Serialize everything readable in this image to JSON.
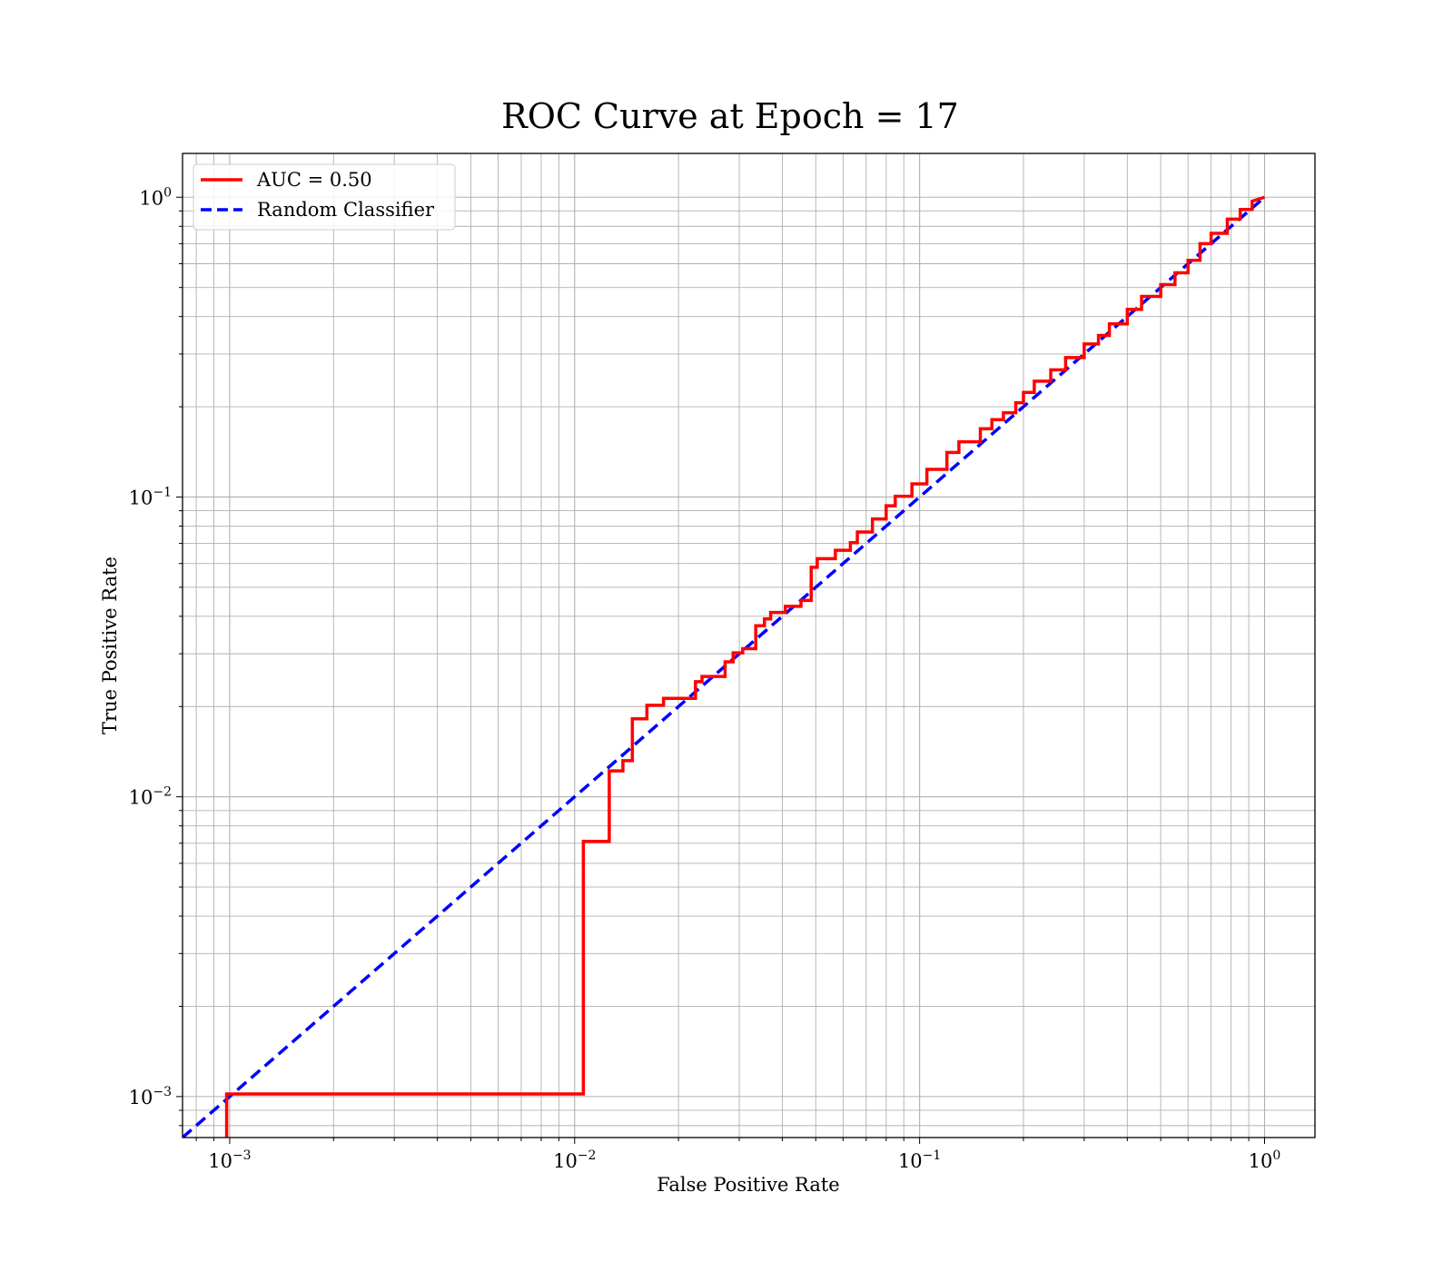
{
  "chart_data": {
    "type": "line",
    "title": "ROC Curve at Epoch = 17",
    "xlabel": "False Positive Rate",
    "ylabel": "True Positive Rate",
    "xscale": "log",
    "yscale": "log",
    "xlim": [
      0.00073,
      1.4
    ],
    "ylim": [
      0.00073,
      1.4
    ],
    "grid": true,
    "legend_position": "top-left",
    "x_ticks": [
      {
        "base": "10",
        "exp": "−3",
        "value": 0.001
      },
      {
        "base": "10",
        "exp": "−2",
        "value": 0.01
      },
      {
        "base": "10",
        "exp": "−1",
        "value": 0.1
      },
      {
        "base": "10",
        "exp": "0",
        "value": 1
      }
    ],
    "y_ticks": [
      {
        "base": "10",
        "exp": "−3",
        "value": 0.001
      },
      {
        "base": "10",
        "exp": "−2",
        "value": 0.01
      },
      {
        "base": "10",
        "exp": "−1",
        "value": 0.1
      },
      {
        "base": "10",
        "exp": "0",
        "value": 1
      }
    ],
    "series": [
      {
        "name": "AUC = 0.50",
        "color": "#ff0000",
        "style": "solid",
        "step": true,
        "x": [
          0.00098,
          0.00098,
          0.0106,
          0.0106,
          0.0126,
          0.0126,
          0.0138,
          0.0138,
          0.0147,
          0.0147,
          0.0162,
          0.0162,
          0.0181,
          0.0181,
          0.0224,
          0.0224,
          0.0234,
          0.0234,
          0.0273,
          0.0273,
          0.0288,
          0.0288,
          0.0307,
          0.0307,
          0.0335,
          0.0335,
          0.0355,
          0.0355,
          0.037,
          0.037,
          0.0408,
          0.0408,
          0.0453,
          0.0453,
          0.0485,
          0.0485,
          0.0505,
          0.0505,
          0.057,
          0.057,
          0.063,
          0.063,
          0.066,
          0.066,
          0.073,
          0.073,
          0.08,
          0.08,
          0.085,
          0.085,
          0.095,
          0.095,
          0.105,
          0.105,
          0.12,
          0.12,
          0.13,
          0.13,
          0.15,
          0.15,
          0.162,
          0.162,
          0.175,
          0.175,
          0.19,
          0.19,
          0.2,
          0.2,
          0.215,
          0.215,
          0.24,
          0.24,
          0.265,
          0.265,
          0.3,
          0.3,
          0.33,
          0.33,
          0.355,
          0.355,
          0.4,
          0.4,
          0.44,
          0.44,
          0.5,
          0.5,
          0.55,
          0.55,
          0.6,
          0.6,
          0.65,
          0.65,
          0.7,
          0.7,
          0.78,
          0.78,
          0.85,
          0.85,
          0.92,
          0.92,
          1.0
        ],
        "y": [
          0.00073,
          0.00102,
          0.00102,
          0.0071,
          0.0071,
          0.0122,
          0.0122,
          0.0132,
          0.0132,
          0.0182,
          0.0182,
          0.0202,
          0.0202,
          0.0213,
          0.0213,
          0.0242,
          0.0242,
          0.0252,
          0.0252,
          0.0282,
          0.0282,
          0.0302,
          0.0302,
          0.0312,
          0.0312,
          0.0372,
          0.0372,
          0.0392,
          0.0392,
          0.0412,
          0.0412,
          0.0432,
          0.0432,
          0.0452,
          0.0452,
          0.0583,
          0.0583,
          0.0623,
          0.0623,
          0.0664,
          0.0664,
          0.0704,
          0.0704,
          0.0764,
          0.0764,
          0.0845,
          0.0845,
          0.0935,
          0.0935,
          0.1006,
          0.1006,
          0.1106,
          0.1106,
          0.1237,
          0.1237,
          0.1408,
          0.1408,
          0.1529,
          0.1529,
          0.169,
          0.169,
          0.1811,
          0.1811,
          0.1911,
          0.1911,
          0.2062,
          0.2062,
          0.2233,
          0.2233,
          0.2434,
          0.2434,
          0.2656,
          0.2656,
          0.2918,
          0.2918,
          0.3239,
          0.3239,
          0.346,
          0.346,
          0.3781,
          0.3781,
          0.4225,
          0.4225,
          0.4668,
          0.4668,
          0.5111,
          0.5111,
          0.5594,
          0.5594,
          0.6157,
          0.6157,
          0.7,
          0.7,
          0.758,
          0.758,
          0.845,
          0.845,
          0.91,
          0.91,
          0.97,
          1.0
        ]
      },
      {
        "name": "Random Classifier",
        "color": "#0000ff",
        "style": "dashed",
        "step": false,
        "x": [
          0.00073,
          1.0
        ],
        "y": [
          0.00073,
          1.0
        ]
      }
    ]
  }
}
